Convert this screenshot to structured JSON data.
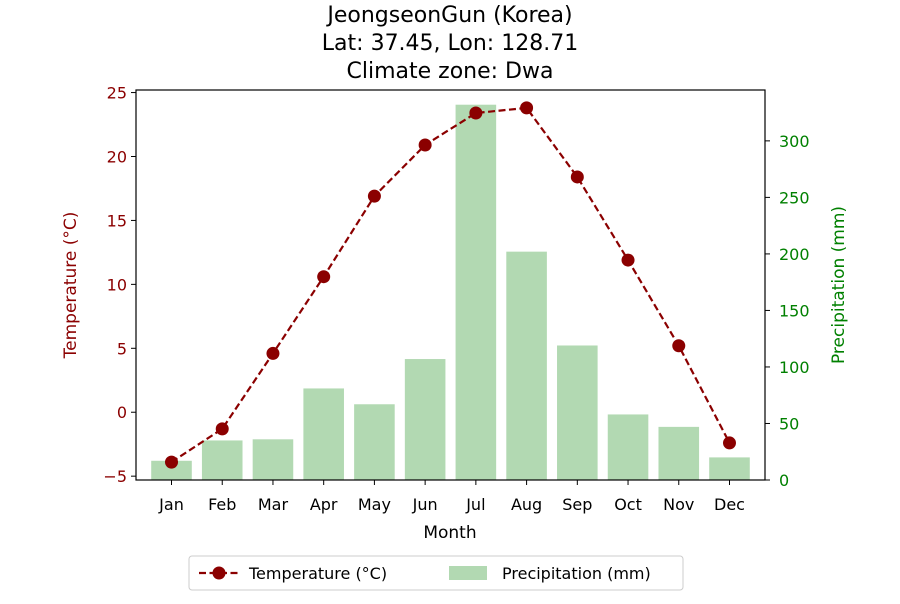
{
  "chart_data": {
    "type": "bar",
    "title_lines": [
      "JeongseonGun (Korea)",
      "Lat: 37.45, Lon: 128.71",
      "Climate zone: Dwa"
    ],
    "xlabel": "Month",
    "ylabel_left": "Temperature (°C)",
    "ylabel_right": "Precipitation (mm)",
    "categories": [
      "Jan",
      "Feb",
      "Mar",
      "Apr",
      "May",
      "Jun",
      "Jul",
      "Aug",
      "Sep",
      "Oct",
      "Nov",
      "Dec"
    ],
    "series": [
      {
        "name": "Temperature (°C)",
        "type": "line",
        "axis": "left",
        "color": "#8b0000",
        "values": [
          -3.9,
          -1.3,
          4.6,
          10.6,
          16.9,
          20.9,
          23.4,
          23.8,
          18.4,
          11.9,
          5.2,
          -2.4
        ]
      },
      {
        "name": "Precipitation (mm)",
        "type": "bar",
        "axis": "right",
        "color": "#b2d9b2",
        "values": [
          17,
          35,
          36,
          81,
          67,
          107,
          332,
          202,
          119,
          58,
          47,
          20
        ]
      }
    ],
    "ylim_left": [
      -5.3,
      25.2
    ],
    "ylim_right": [
      0,
      345
    ],
    "yticks_left": [
      -5,
      0,
      5,
      10,
      15,
      20,
      25
    ],
    "yticks_right": [
      0,
      50,
      100,
      150,
      200,
      250,
      300
    ],
    "left_axis_color": "#8b0000",
    "right_axis_color": "#008000",
    "grid": false,
    "legend_placement": "bottom-center"
  }
}
